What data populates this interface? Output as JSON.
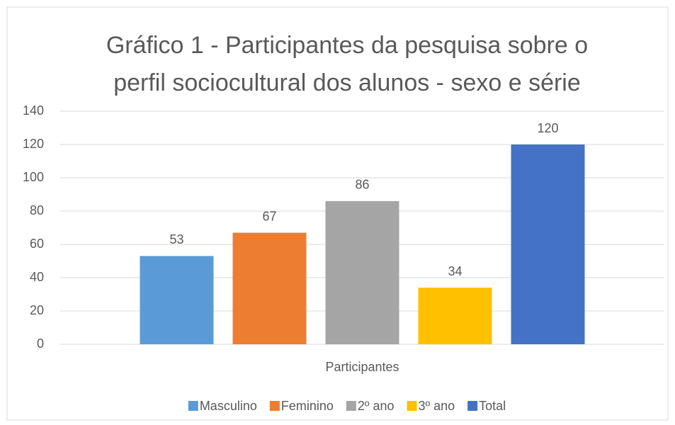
{
  "chart_data": {
    "type": "bar",
    "title": "Gráfico 1 - Participantes da pesquisa sobre o perfil sociocultural dos alunos - sexo e série",
    "categories": [
      "Participantes"
    ],
    "series": [
      {
        "name": "Masculino",
        "color": "#5b9bd5",
        "values": [
          53
        ]
      },
      {
        "name": "Feminino",
        "color": "#ed7d31",
        "values": [
          67
        ]
      },
      {
        "name": "2º ano",
        "color": "#a5a5a5",
        "values": [
          86
        ]
      },
      {
        "name": "3º ano",
        "color": "#ffc000",
        "values": [
          34
        ]
      },
      {
        "name": "Total",
        "color": "#4472c4",
        "values": [
          120
        ]
      }
    ],
    "ylim": [
      0,
      140
    ],
    "yticks": [
      0,
      20,
      40,
      60,
      80,
      100,
      120,
      140
    ],
    "grid": true,
    "legend": "bottom"
  }
}
